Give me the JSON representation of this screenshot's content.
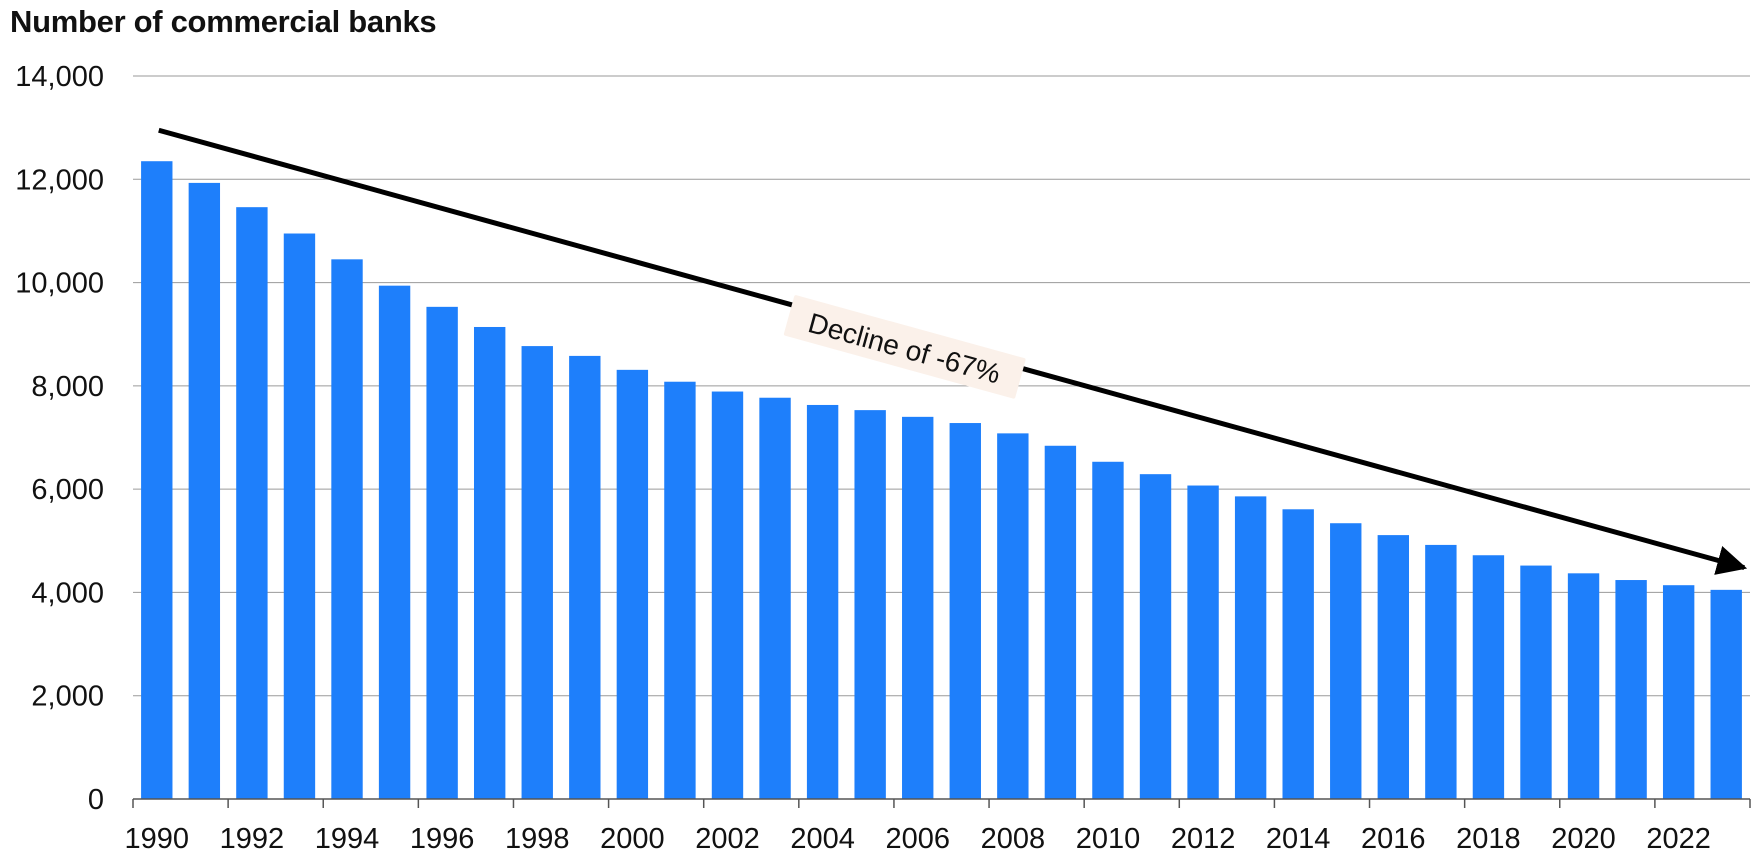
{
  "chart_data": {
    "type": "bar",
    "title": "",
    "xlabel": "",
    "ylabel": "Number of commercial banks",
    "ylim": [
      0,
      14000
    ],
    "yticks": [
      0,
      2000,
      4000,
      6000,
      8000,
      10000,
      12000,
      14000
    ],
    "ytick_labels": [
      "0",
      "2,000",
      "4,000",
      "6,000",
      "8,000",
      "10,000",
      "12,000",
      "14,000"
    ],
    "categories": [
      "1990",
      "1991",
      "1992",
      "1993",
      "1994",
      "1995",
      "1996",
      "1997",
      "1998",
      "1999",
      "2000",
      "2001",
      "2002",
      "2003",
      "2004",
      "2005",
      "2006",
      "2007",
      "2008",
      "2009",
      "2010",
      "2011",
      "2012",
      "2013",
      "2014",
      "2015",
      "2016",
      "2017",
      "2018",
      "2019",
      "2020",
      "2021",
      "2022",
      "2023"
    ],
    "xtick_labels": [
      "1990",
      "1992",
      "1994",
      "1996",
      "1998",
      "2000",
      "2002",
      "2004",
      "2006",
      "2008",
      "2010",
      "2012",
      "2014",
      "2016",
      "2018",
      "2020",
      "2022"
    ],
    "values": [
      12350,
      11930,
      11460,
      10950,
      10450,
      9940,
      9530,
      9140,
      8770,
      8580,
      8310,
      8080,
      7890,
      7770,
      7630,
      7530,
      7400,
      7280,
      7080,
      6840,
      6530,
      6290,
      6070,
      5860,
      5610,
      5340,
      5110,
      4920,
      4720,
      4520,
      4370,
      4240,
      4140,
      4050
    ],
    "bar_color": "#1E7FFB",
    "grid": true,
    "annotation": {
      "text": "Decline of -67%",
      "arrow_start": {
        "x": "1990",
        "y": 12950
      },
      "arrow_end": {
        "x": "2023",
        "y": 4480
      }
    }
  }
}
